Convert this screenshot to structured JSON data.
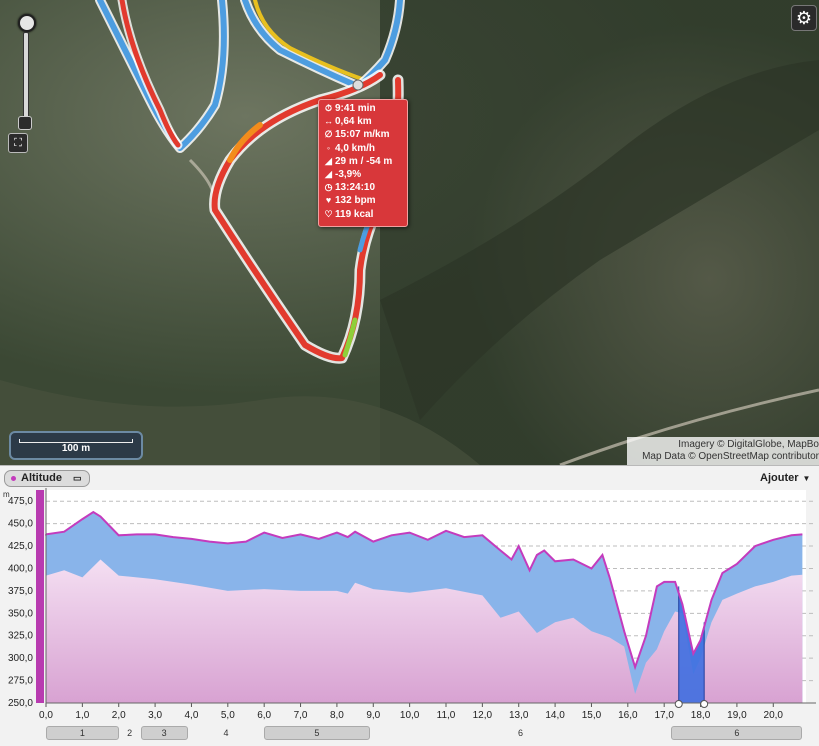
{
  "map": {
    "scale_label": "100 m",
    "attribution": [
      "Imagery © DigitalGlobe, MapBo",
      "Map Data © OpenStreetMap contributor"
    ],
    "controls": {
      "zoom_in": "zoom-in",
      "fit": "⛶",
      "settings": "⚙"
    }
  },
  "popup": {
    "rows": [
      {
        "icon": "stopwatch-icon",
        "glyph": "⏱",
        "value": "9:41 min"
      },
      {
        "icon": "distance-icon",
        "glyph": "↔",
        "value": "0,64 km"
      },
      {
        "icon": "pace-icon",
        "glyph": "∅",
        "value": "15:07 m/km"
      },
      {
        "icon": "speed-icon",
        "glyph": "◦",
        "value": "4,0 km/h"
      },
      {
        "icon": "elevation-icon",
        "glyph": "◢",
        "value": "29 m / -54 m"
      },
      {
        "icon": "grade-icon",
        "glyph": "◢",
        "value": "-3,9%"
      },
      {
        "icon": "clock-icon",
        "glyph": "◷",
        "value": "13:24:10"
      },
      {
        "icon": "heart-icon",
        "glyph": "♥",
        "value": "132 bpm"
      },
      {
        "icon": "calories-icon",
        "glyph": "♡",
        "value": "119 kcal"
      }
    ]
  },
  "panel": {
    "tab_label": "Altitude",
    "add_label": "Ajouter",
    "unit_label": "m"
  },
  "segments": [
    {
      "label": "1",
      "from": 0.0,
      "to": 2.0
    },
    {
      "label": "2",
      "from": 2.0,
      "to": 2.6
    },
    {
      "label": "3",
      "from": 2.6,
      "to": 3.9
    },
    {
      "label": "4",
      "from": 3.9,
      "to": 6.0
    },
    {
      "label": "5",
      "from": 6.0,
      "to": 8.9
    },
    {
      "label": "6",
      "from": 8.9,
      "to": 17.2
    },
    {
      "label": "6",
      "from": 17.2,
      "to": 20.8
    }
  ],
  "chart_data": {
    "type": "area",
    "xlabel": "",
    "ylabel": "m",
    "xlim": [
      0,
      20.9
    ],
    "ylim": [
      250,
      487.5
    ],
    "x_ticks": [
      "0,0",
      "1,0",
      "2,0",
      "3,0",
      "4,0",
      "5,0",
      "6,0",
      "7,0",
      "8,0",
      "9,0",
      "10,0",
      "11,0",
      "12,0",
      "13,0",
      "14,0",
      "15,0",
      "16,0",
      "17,0",
      "18,0",
      "19,0",
      "20,0"
    ],
    "y_ticks": [
      "250,0",
      "275,0",
      "300,0",
      "325,0",
      "350,0",
      "375,0",
      "400,0",
      "425,0",
      "450,0",
      "475,0"
    ],
    "grid": true,
    "series": [
      {
        "role": "altitude",
        "x": [
          0,
          0.5,
          1.0,
          1.3,
          1.5,
          2.0,
          2.5,
          3.0,
          3.5,
          4.0,
          4.5,
          5.0,
          5.5,
          6.0,
          6.5,
          7.0,
          7.5,
          8.0,
          8.3,
          8.5,
          9.0,
          9.5,
          10.0,
          10.5,
          11.0,
          11.5,
          12.0,
          12.5,
          12.8,
          13.0,
          13.3,
          13.5,
          13.7,
          14.0,
          14.5,
          15.0,
          15.3,
          15.5,
          15.9,
          16.2,
          16.5,
          16.8,
          17.0,
          17.3,
          17.5,
          17.8,
          18.0,
          18.3,
          18.6,
          19.0,
          19.5,
          20.0,
          20.5,
          20.8
        ],
        "y": [
          438,
          441,
          455,
          463,
          458,
          437,
          438,
          438,
          435,
          433,
          430,
          428,
          430,
          440,
          434,
          438,
          433,
          440,
          435,
          441,
          430,
          437,
          440,
          432,
          442,
          435,
          437,
          420,
          410,
          425,
          398,
          415,
          420,
          408,
          410,
          400,
          415,
          390,
          330,
          290,
          325,
          380,
          385,
          385,
          360,
          305,
          320,
          365,
          395,
          405,
          425,
          432,
          437,
          438
        ]
      },
      {
        "role": "lower-bound",
        "x": [
          0,
          0.5,
          1.0,
          1.5,
          2.0,
          3.0,
          4.0,
          5.0,
          6.0,
          7.0,
          8.0,
          8.3,
          8.5,
          9.0,
          10.0,
          11.0,
          12.0,
          12.5,
          13.0,
          13.5,
          14.0,
          14.5,
          15.0,
          15.5,
          15.9,
          16.2,
          16.5,
          16.8,
          17.0,
          17.3,
          17.5,
          17.8,
          18.0,
          18.3,
          18.6,
          19.0,
          19.5,
          20.0,
          20.5,
          20.8
        ],
        "y": [
          392,
          398,
          390,
          410,
          392,
          388,
          382,
          375,
          377,
          375,
          375,
          372,
          384,
          377,
          373,
          378,
          370,
          345,
          352,
          328,
          340,
          345,
          330,
          323,
          313,
          260,
          295,
          310,
          330,
          352,
          350,
          282,
          300,
          340,
          365,
          372,
          380,
          385,
          392,
          393
        ]
      }
    ],
    "selection": {
      "from": 17.4,
      "to": 18.1
    }
  }
}
